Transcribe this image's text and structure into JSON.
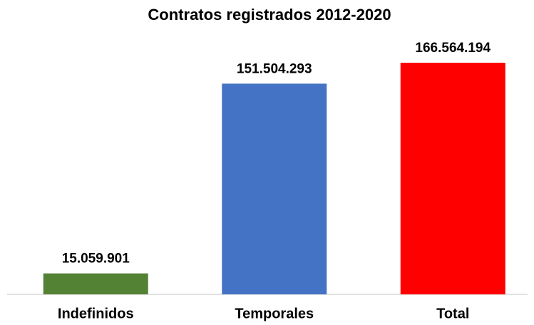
{
  "chart_data": {
    "type": "bar",
    "title": "Contratos registrados 2012-2020",
    "categories": [
      "Indefinidos",
      "Temporales",
      "Total"
    ],
    "values": [
      15059901,
      151504293,
      166564194
    ],
    "value_labels": [
      "15.059.901",
      "151.504.293",
      "166.564.194"
    ],
    "colors": [
      "#548235",
      "#4472c4",
      "#ff0000"
    ]
  }
}
